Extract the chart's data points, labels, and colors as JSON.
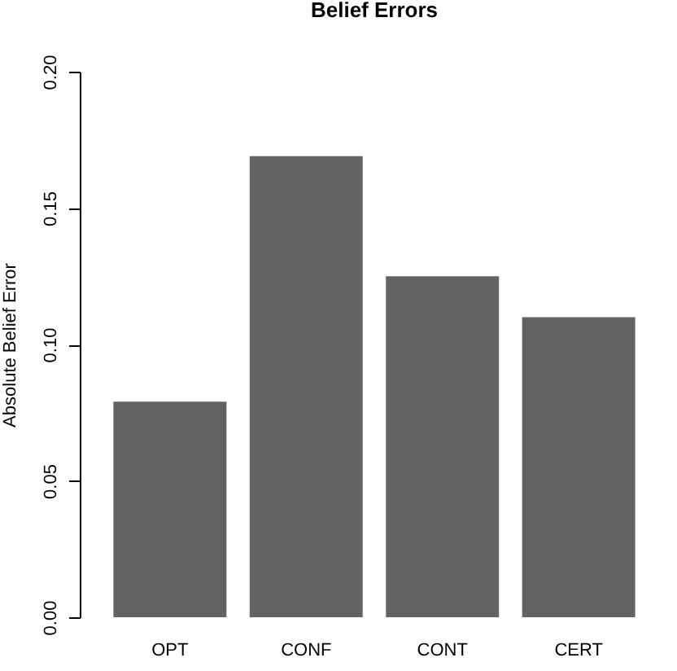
{
  "chart_data": {
    "type": "bar",
    "title": "Belief Errors",
    "ylabel": "Absolute Belief Error",
    "categories": [
      "OPT",
      "CONF",
      "CONT",
      "CERT"
    ],
    "values": [
      0.079,
      0.169,
      0.125,
      0.11
    ],
    "color": "#636363",
    "ylim": [
      0,
      0.2
    ],
    "yticks": [
      {
        "value": 0,
        "label": "0.00"
      },
      {
        "value": 0.05,
        "label": "0.05"
      },
      {
        "value": 0.1,
        "label": "0.10"
      },
      {
        "value": 0.15,
        "label": "0.15"
      },
      {
        "value": 0.2,
        "label": "0.20"
      }
    ],
    "grid": false
  }
}
